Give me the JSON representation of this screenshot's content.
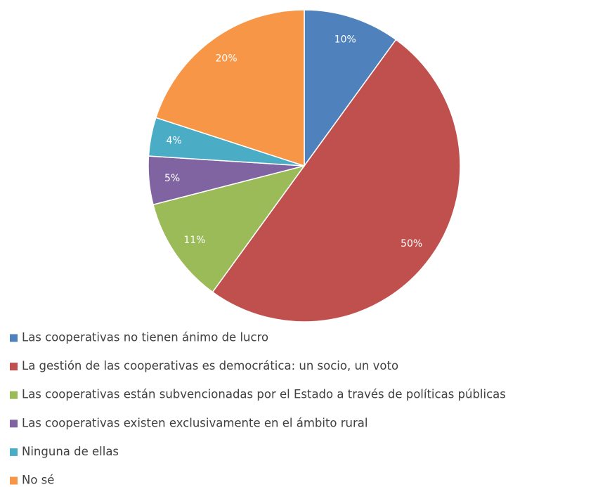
{
  "chart_data": {
    "type": "pie",
    "categories": [
      "Las cooperativas no tienen ánimo de lucro",
      "La gestión de las cooperativas es democrática: un socio, un voto",
      "Las cooperativas están subvencionadas por el Estado a través de políticas públicas",
      "Las cooperativas existen exclusivamente en el ámbito rural",
      "Ninguna de ellas",
      "No sé"
    ],
    "values": [
      10,
      50,
      11,
      5,
      4,
      20
    ],
    "value_labels": [
      "10%",
      "50%",
      "11%",
      "5%",
      "4%",
      "20%"
    ],
    "colors": [
      "#4f81bd",
      "#c0504d",
      "#9bbb59",
      "#8064a2",
      "#4bacc6",
      "#f79646"
    ],
    "legend": "bottom"
  }
}
